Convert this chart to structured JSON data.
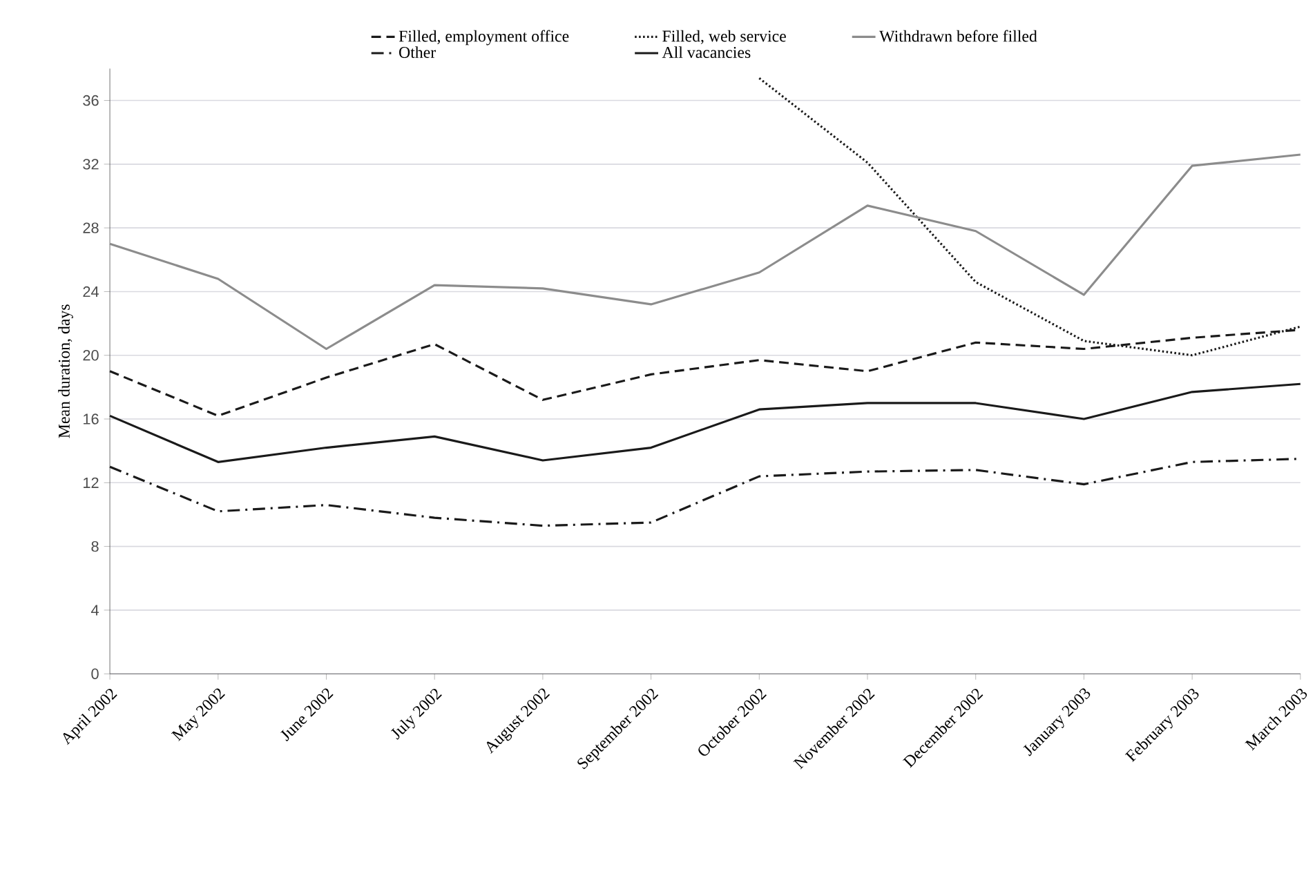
{
  "chart_data": {
    "type": "line",
    "ylabel": "Mean duration, days",
    "categories": [
      "April 2002",
      "May 2002",
      "June 2002",
      "July 2002",
      "August 2002",
      "September 2002",
      "October 2002",
      "November 2002",
      "December 2002",
      "January 2003",
      "February 2003",
      "March 2003"
    ],
    "series": [
      {
        "name": "Filled, employment office",
        "color": "#1a1a1a",
        "line_style": "dashed",
        "values": [
          19.0,
          16.2,
          18.6,
          20.7,
          17.2,
          18.8,
          19.7,
          19.0,
          20.8,
          20.4,
          21.1,
          21.6
        ]
      },
      {
        "name": "Filled, web service",
        "color": "#1a1a1a",
        "line_style": "dotted",
        "values": [
          null,
          null,
          null,
          null,
          null,
          null,
          37.4,
          32.1,
          24.6,
          20.9,
          20.0,
          21.8
        ]
      },
      {
        "name": "Withdrawn before filled",
        "color": "#8c8c8c",
        "line_style": "solid",
        "values": [
          27.0,
          24.8,
          20.4,
          24.4,
          24.2,
          23.2,
          25.2,
          29.4,
          27.8,
          23.8,
          31.9,
          32.6
        ]
      },
      {
        "name": "Other",
        "color": "#1a1a1a",
        "line_style": "dashdot",
        "values": [
          13.0,
          10.2,
          10.6,
          9.8,
          9.3,
          9.5,
          12.4,
          12.7,
          12.8,
          11.9,
          13.3,
          13.5
        ]
      },
      {
        "name": "All vacancies",
        "color": "#1a1a1a",
        "line_style": "solid",
        "values": [
          16.2,
          13.3,
          14.2,
          14.9,
          13.4,
          14.2,
          16.6,
          17.0,
          17.0,
          16.0,
          17.7,
          18.2
        ]
      }
    ],
    "ylim": [
      0,
      38
    ],
    "yticks": [
      0,
      4,
      8,
      12,
      16,
      20,
      24,
      28,
      32,
      36
    ],
    "grid": "y",
    "legend": "top",
    "marker": "none"
  }
}
